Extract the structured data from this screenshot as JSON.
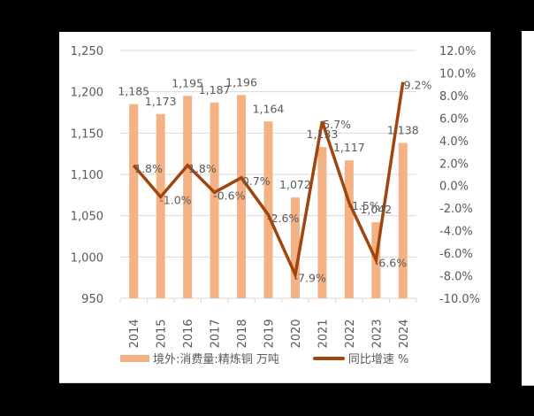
{
  "chart_data": {
    "type": "bar+line",
    "title": "",
    "categories": [
      "2014",
      "2015",
      "2016",
      "2017",
      "2018",
      "2019",
      "2020",
      "2021",
      "2022",
      "2023",
      "2024"
    ],
    "series": [
      {
        "name": "境外:消费量:精炼铜 万吨",
        "type": "bar",
        "axis": "left",
        "color": "#f4b183",
        "values": [
          1185,
          1173,
          1195,
          1187,
          1196,
          1164,
          1072,
          1133,
          1117,
          1042,
          1138
        ],
        "labels": [
          "1,185",
          "1,173",
          "1,195",
          "1,187",
          "1,196",
          "1,164",
          "1,072",
          "1,133",
          "1,117",
          "1,042",
          "1,138"
        ]
      },
      {
        "name": "同比增速 %",
        "type": "line",
        "axis": "right",
        "color": "#a0450e",
        "values": [
          1.8,
          -1.0,
          1.8,
          -0.6,
          0.7,
          -2.6,
          -7.9,
          5.7,
          -1.5,
          -6.6,
          9.2
        ],
        "labels": [
          "1.8%",
          "-1.0%",
          "1.8%",
          "-0.6%",
          "0.7%",
          "-2.6%",
          "-7.9%",
          "5.7%",
          "-1.5%",
          "-6.6%",
          "9.2%"
        ]
      }
    ],
    "left_axis": {
      "min": 950,
      "max": 1250,
      "step": 50,
      "ticks": [
        "950",
        "1,000",
        "1,050",
        "1,100",
        "1,150",
        "1,200",
        "1,250"
      ]
    },
    "right_axis": {
      "min": -10,
      "max": 12,
      "step": 2,
      "ticks": [
        "-10.0%",
        "-8.0%",
        "-6.0%",
        "-4.0%",
        "-2.0%",
        "0.0%",
        "2.0%",
        "4.0%",
        "6.0%",
        "8.0%",
        "10.0%",
        "12.0%"
      ]
    },
    "grid": true,
    "legend_position": "bottom"
  },
  "legend": {
    "bar_label": "境外:消费量:精炼铜 万吨",
    "line_label": "同比增速 %"
  }
}
